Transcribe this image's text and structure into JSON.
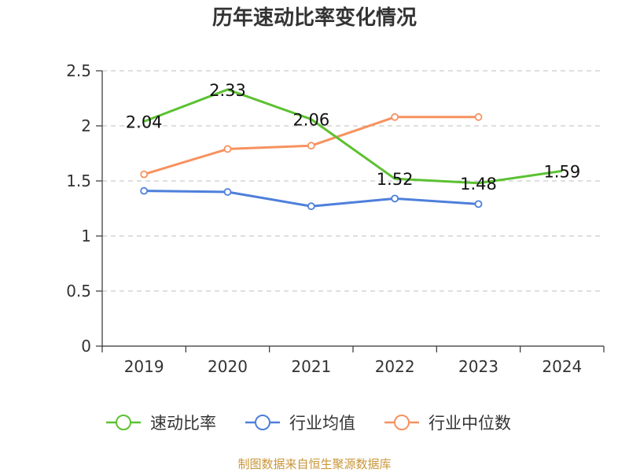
{
  "chart_data": {
    "type": "line",
    "title": "历年速动比率变化情况",
    "categories": [
      "2019",
      "2020",
      "2021",
      "2022",
      "2023",
      "2024"
    ],
    "ylim": [
      0,
      2.5
    ],
    "yticks": [
      "0",
      "0.5",
      "1",
      "1.5",
      "2",
      "2.5"
    ],
    "grid": true,
    "legend_position": "bottom",
    "series": [
      {
        "name": "速动比率",
        "color": "#5cc132",
        "values": [
          2.04,
          2.33,
          2.06,
          1.52,
          1.48,
          1.59
        ],
        "labels": [
          "2.04",
          "2.33",
          "2.06",
          "1.52",
          "1.48",
          "1.59"
        ]
      },
      {
        "name": "行业均值",
        "color": "#4e7fdb",
        "values": [
          1.41,
          1.4,
          1.27,
          1.34,
          1.29,
          null
        ]
      },
      {
        "name": "行业中位数",
        "color": "#f79260",
        "values": [
          1.56,
          1.79,
          1.82,
          2.08,
          2.08,
          null
        ]
      }
    ],
    "source_note": "制图数据来自恒生聚源数据库"
  }
}
